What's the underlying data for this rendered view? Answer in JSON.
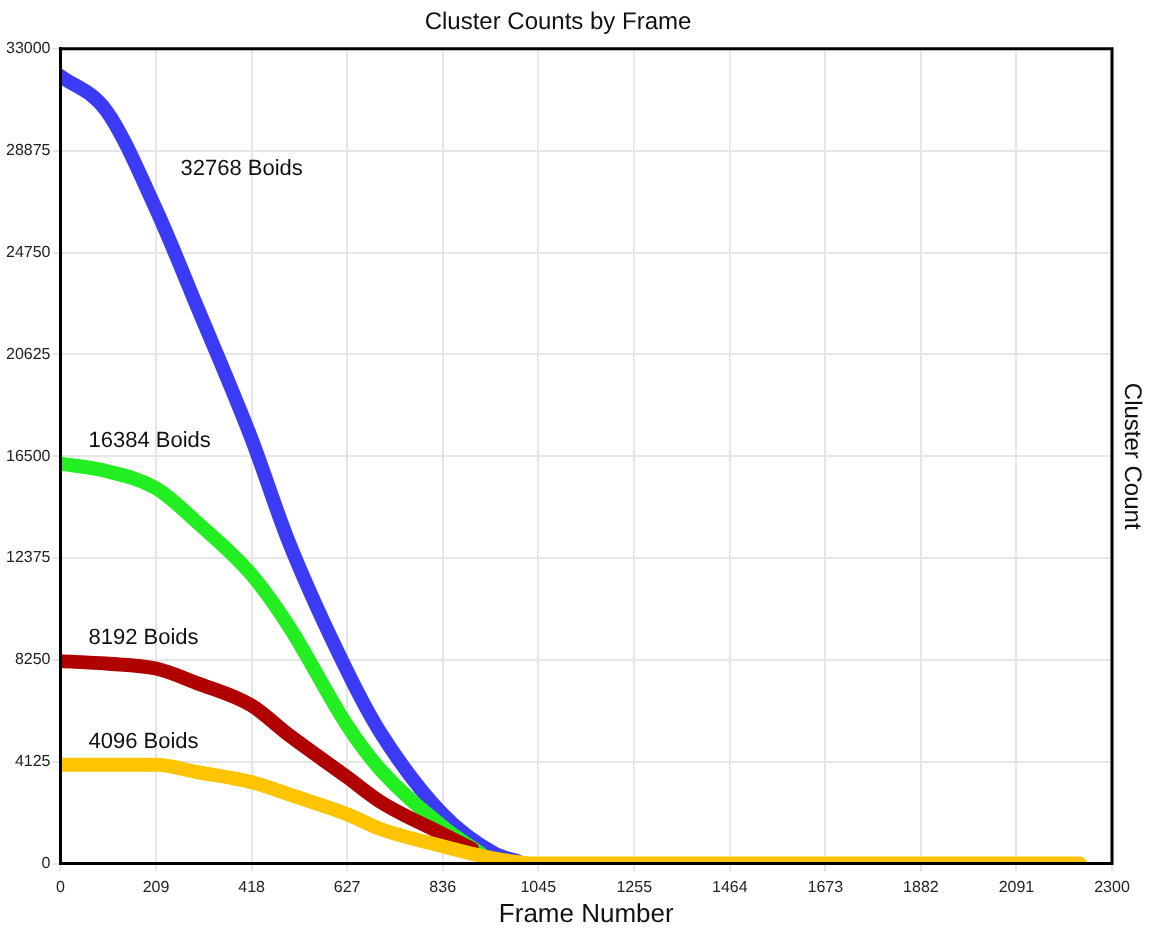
{
  "chart_data": {
    "type": "line",
    "title": "Cluster Counts by Frame",
    "xlabel": "Frame Number",
    "ylabel": "Cluster Count",
    "xlim": [
      0,
      2300
    ],
    "xticks": [
      0,
      209,
      418,
      627,
      836,
      1045,
      1255,
      1464,
      1673,
      1882,
      2091,
      2300
    ],
    "ylim": [
      0,
      33000
    ],
    "yticks": [
      0,
      4125,
      8250,
      12375,
      16500,
      20625,
      24750,
      28875,
      33000
    ],
    "grid": true,
    "legend": false,
    "marker": "none",
    "line_style": "solid",
    "series": [
      {
        "name": "32768 Boids",
        "color": "#3b3bf5",
        "x": [
          0,
          100,
          209,
          300,
          418,
          500,
          627,
          700,
          836,
          950,
          1000
        ],
        "values": [
          31900,
          30500,
          26500,
          22500,
          17200,
          13000,
          7800,
          5300,
          2000,
          400,
          100
        ]
      },
      {
        "name": "16384 Boids",
        "color": "#22ee22",
        "x": [
          0,
          100,
          209,
          300,
          418,
          500,
          627,
          700,
          836,
          920
        ],
        "values": [
          16200,
          15900,
          15200,
          13800,
          11700,
          9600,
          5600,
          3800,
          1500,
          400
        ]
      },
      {
        "name": "8192 Boids",
        "color": "#b00000",
        "x": [
          0,
          100,
          209,
          300,
          418,
          500,
          627,
          700,
          836,
          900
        ],
        "values": [
          8200,
          8100,
          7900,
          7300,
          6400,
          5200,
          3500,
          2500,
          1200,
          600
        ]
      },
      {
        "name": "4096 Boids",
        "color": "#ffc400",
        "x": [
          0,
          100,
          209,
          300,
          418,
          500,
          627,
          700,
          836,
          950,
          1045,
          1500,
          2230
        ],
        "values": [
          4000,
          4000,
          4000,
          3700,
          3300,
          2800,
          2000,
          1400,
          700,
          200,
          0,
          0,
          0
        ]
      }
    ]
  }
}
